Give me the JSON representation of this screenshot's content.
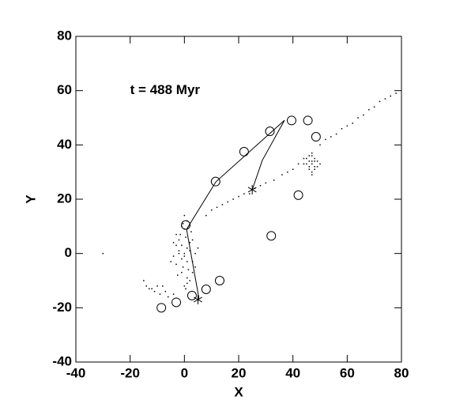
{
  "chart_data": {
    "type": "scatter",
    "annotation": "t = 488 Myr",
    "annotation_pos": [
      -20,
      60
    ],
    "x_label": "X",
    "y_label": "Y",
    "xlim": [
      -40,
      80
    ],
    "ylim": [
      -40,
      80
    ],
    "xticks": [
      -40,
      -20,
      0,
      20,
      40,
      60,
      80
    ],
    "yticks": [
      -40,
      -20,
      0,
      20,
      40,
      60,
      80
    ],
    "series": [
      {
        "marker": "dot",
        "color": "#000000",
        "x": [
          0,
          1,
          -1,
          2,
          -2,
          3,
          -3,
          0.5,
          -0.5,
          1.5,
          -1.5,
          2.5,
          -2.5,
          4,
          -4,
          0,
          1,
          -1,
          2,
          -2,
          3,
          -3,
          0,
          1,
          -1,
          5,
          -5,
          0,
          2,
          -2,
          1,
          -1,
          3,
          -3,
          0,
          0.5,
          -0.5,
          4,
          -4,
          1,
          47,
          46,
          48,
          45,
          49,
          47,
          46,
          48,
          47,
          44,
          50,
          47,
          46,
          48,
          45,
          49,
          47,
          46,
          48,
          47,
          8,
          10,
          12,
          14,
          16,
          18,
          20,
          22,
          24,
          26,
          28,
          30,
          33,
          36,
          38,
          40,
          42,
          44,
          50,
          52,
          54,
          56,
          58,
          60,
          62,
          64,
          66,
          68,
          70,
          72,
          74,
          76,
          78,
          -8,
          -12,
          -15,
          -14,
          -13,
          -11,
          -10,
          -9,
          -7,
          -6,
          -4,
          -30
        ],
        "values": [
          0,
          2,
          -2,
          4,
          1,
          -3,
          3,
          6,
          -5,
          -6,
          7,
          8,
          -8,
          0,
          -1,
          9,
          -9,
          10,
          -10,
          5,
          5,
          -4,
          -12,
          12,
          -7,
          2,
          -3,
          -1,
          1,
          0,
          -3,
          3,
          -7,
          7,
          14,
          -13,
          11,
          -5,
          4,
          -11,
          33,
          34,
          32,
          33,
          34,
          36,
          31,
          35,
          30,
          33,
          33,
          37,
          36,
          31,
          35,
          32,
          34,
          32,
          34,
          29,
          14,
          16,
          17,
          18,
          19,
          20,
          21,
          22,
          22,
          24,
          25,
          26,
          27,
          29,
          30,
          31,
          33,
          35,
          40,
          42,
          43,
          44,
          46,
          47,
          48,
          50,
          51,
          53,
          54,
          56,
          57,
          58,
          59,
          -12,
          -13,
          -10,
          -12,
          -13,
          -14,
          -12,
          -15,
          -14,
          -16,
          -15,
          0
        ]
      },
      {
        "marker": "circle",
        "color": "#000000",
        "x": [
          39.5,
          45.5,
          48.5,
          31.5,
          22,
          11.5,
          42,
          32,
          0.5,
          13,
          8,
          2.8,
          -3,
          -8.5
        ],
        "values": [
          49,
          49,
          43,
          45,
          37.5,
          26.5,
          21.5,
          6.5,
          10.5,
          -10,
          -13.2,
          -15.5,
          -18,
          -20
        ]
      },
      {
        "marker": "line",
        "color": "#000000",
        "x": [
          5.4,
          0.8,
          11.6,
          36.9,
          28.7,
          25
        ],
        "values": [
          -16.7,
          8.9,
          26.4,
          49.1,
          34.3,
          23.5
        ]
      },
      {
        "marker": "star",
        "color": "#000000",
        "x": [
          25,
          5
        ],
        "values": [
          23.5,
          -17
        ]
      }
    ]
  }
}
